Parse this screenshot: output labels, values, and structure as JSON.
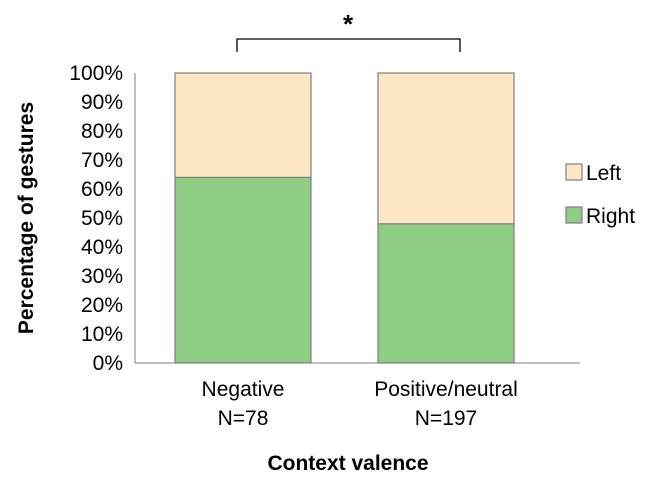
{
  "chart_data": {
    "type": "bar",
    "stacked": true,
    "categories": [
      "Negative",
      "Positive/neutral"
    ],
    "category_sublabels": [
      "N=78",
      "N=197"
    ],
    "series": [
      {
        "name": "Right",
        "values": [
          64,
          48
        ],
        "color": "#8fcc84"
      },
      {
        "name": "Left",
        "values": [
          36,
          52
        ],
        "color": "#fde7c4"
      }
    ],
    "ylim": [
      0,
      100
    ],
    "yticks": [
      "0%",
      "10%",
      "20%",
      "30%",
      "40%",
      "50%",
      "60%",
      "70%",
      "80%",
      "90%",
      "100%"
    ],
    "xlabel": "Context valence",
    "ylabel": "Percentage of gestures",
    "legend": {
      "position": "right",
      "order": [
        "Left",
        "Right"
      ]
    },
    "significance": {
      "label": "*",
      "between": [
        "Negative",
        "Positive/neutral"
      ]
    },
    "grid": false,
    "colors": {
      "bar_border": "#7f7f7f",
      "axis": "#7f7f7f"
    }
  }
}
